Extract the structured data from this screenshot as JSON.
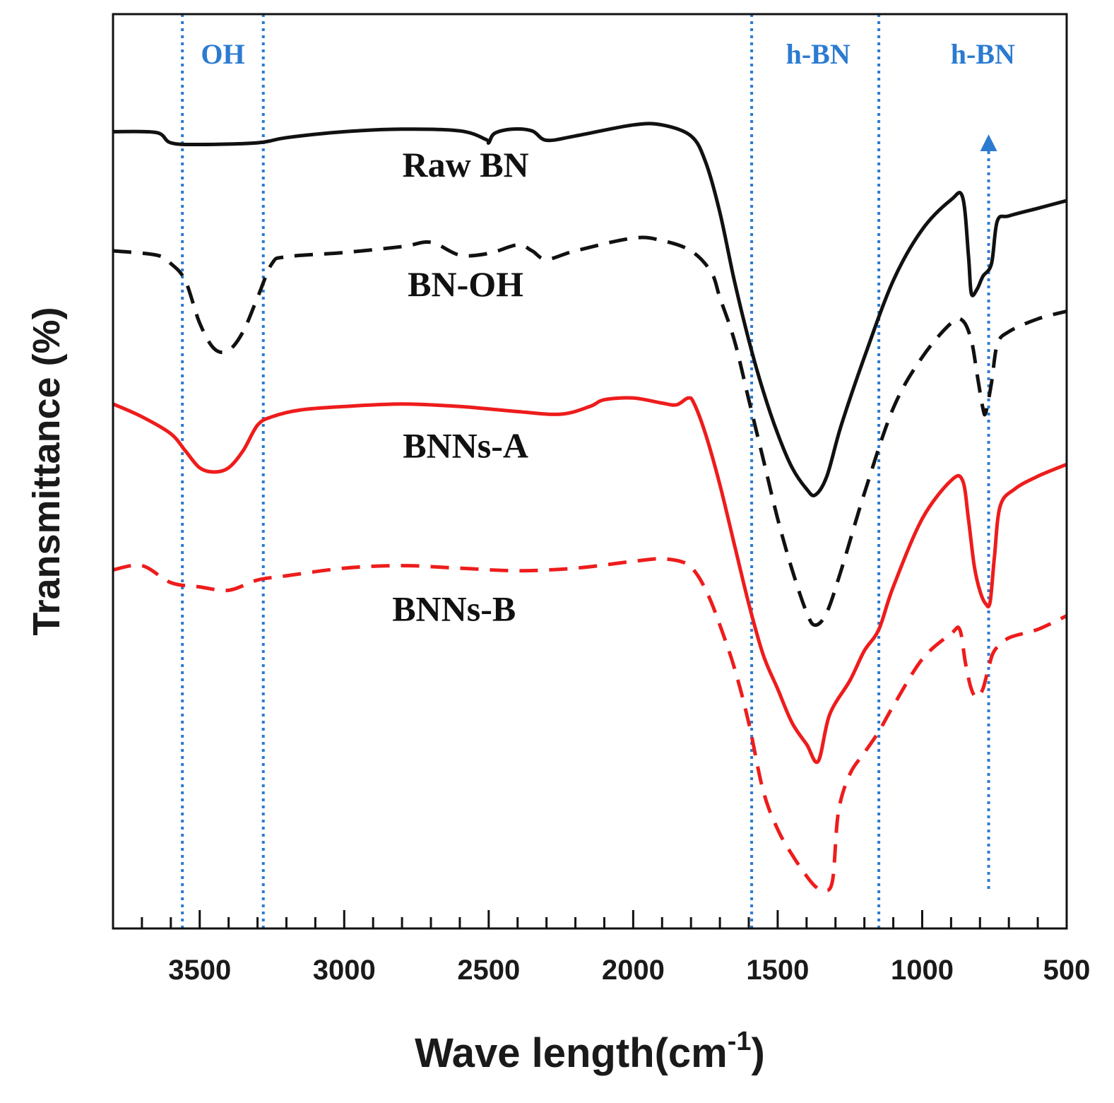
{
  "chart_data": {
    "type": "line",
    "xlabel": "Wave length(cm",
    "xlabel_sup": "-1",
    "xlabel_suffix": ")",
    "ylabel": "Transmittance (%)",
    "xlim": [
      3800,
      500
    ],
    "ylim": [
      0,
      100
    ],
    "x_ticks": [
      3500,
      3000,
      2500,
      2000,
      1500,
      1000,
      500
    ],
    "x_tick_labels": [
      "3500",
      "3000",
      "2500",
      "2000",
      "1500",
      "1000",
      "500"
    ],
    "minor_tick_step": 100,
    "colors": {
      "black": "#111111",
      "red": "#ee1c1c",
      "marker": "#2b7bd1"
    },
    "series": [
      {
        "name": "Raw BN",
        "color": "#111111",
        "dashed": false,
        "points": [
          [
            3800,
            89.5
          ],
          [
            3650,
            89.4
          ],
          [
            3600,
            88.2
          ],
          [
            3500,
            88.0
          ],
          [
            3300,
            88.2
          ],
          [
            3200,
            88.8
          ],
          [
            3000,
            89.5
          ],
          [
            2800,
            89.8
          ],
          [
            2600,
            89.6
          ],
          [
            2510,
            88.6
          ],
          [
            2500,
            88.2
          ],
          [
            2480,
            89.3
          ],
          [
            2420,
            89.8
          ],
          [
            2350,
            89.6
          ],
          [
            2300,
            88.5
          ],
          [
            2200,
            89.0
          ],
          [
            2000,
            90.3
          ],
          [
            1900,
            90.3
          ],
          [
            1800,
            89.0
          ],
          [
            1750,
            86.0
          ],
          [
            1700,
            80.0
          ],
          [
            1650,
            72.0
          ],
          [
            1600,
            65.0
          ],
          [
            1550,
            59.0
          ],
          [
            1500,
            54.0
          ],
          [
            1450,
            50.0
          ],
          [
            1400,
            47.5
          ],
          [
            1370,
            46.8
          ],
          [
            1330,
            49.0
          ],
          [
            1280,
            55.0
          ],
          [
            1200,
            63.0
          ],
          [
            1100,
            72.0
          ],
          [
            1000,
            78.0
          ],
          [
            900,
            81.5
          ],
          [
            860,
            81.8
          ],
          [
            840,
            75.0
          ],
          [
            830,
            70.5
          ],
          [
            810,
            71.0
          ],
          [
            790,
            72.5
          ],
          [
            760,
            74.0
          ],
          [
            740,
            79.0
          ],
          [
            700,
            79.6
          ],
          [
            600,
            80.5
          ],
          [
            500,
            81.4
          ]
        ]
      },
      {
        "name": "BN-OH",
        "color": "#111111",
        "dashed": true,
        "points": [
          [
            3800,
            75.5
          ],
          [
            3650,
            75.0
          ],
          [
            3600,
            74.0
          ],
          [
            3550,
            72.0
          ],
          [
            3500,
            67.0
          ],
          [
            3450,
            64.0
          ],
          [
            3400,
            63.8
          ],
          [
            3350,
            66.0
          ],
          [
            3300,
            70.0
          ],
          [
            3250,
            74.0
          ],
          [
            3200,
            74.8
          ],
          [
            3000,
            75.3
          ],
          [
            2800,
            76.0
          ],
          [
            2700,
            76.5
          ],
          [
            2600,
            75.0
          ],
          [
            2500,
            75.2
          ],
          [
            2400,
            76.2
          ],
          [
            2350,
            75.5
          ],
          [
            2300,
            74.5
          ],
          [
            2200,
            75.5
          ],
          [
            2000,
            77.0
          ],
          [
            1900,
            76.7
          ],
          [
            1800,
            75.5
          ],
          [
            1730,
            73.0
          ],
          [
            1700,
            70.0
          ],
          [
            1650,
            65.0
          ],
          [
            1600,
            58.0
          ],
          [
            1550,
            51.0
          ],
          [
            1500,
            44.0
          ],
          [
            1450,
            38.0
          ],
          [
            1400,
            33.0
          ],
          [
            1370,
            31.5
          ],
          [
            1330,
            33.0
          ],
          [
            1280,
            38.0
          ],
          [
            1200,
            47.0
          ],
          [
            1100,
            57.0
          ],
          [
            1000,
            63.0
          ],
          [
            900,
            67.0
          ],
          [
            860,
            67.3
          ],
          [
            830,
            65.0
          ],
          [
            810,
            61.0
          ],
          [
            790,
            57.0
          ],
          [
            780,
            56.5
          ],
          [
            760,
            60.0
          ],
          [
            740,
            64.5
          ],
          [
            700,
            66.0
          ],
          [
            600,
            67.5
          ],
          [
            500,
            68.4
          ]
        ]
      },
      {
        "name": "BNNs-A",
        "color": "#ee1c1c",
        "dashed": false,
        "points": [
          [
            3800,
            57.5
          ],
          [
            3700,
            56.0
          ],
          [
            3600,
            54.0
          ],
          [
            3550,
            52.0
          ],
          [
            3500,
            50.0
          ],
          [
            3450,
            49.5
          ],
          [
            3400,
            50.0
          ],
          [
            3350,
            52.0
          ],
          [
            3300,
            55.0
          ],
          [
            3250,
            56.0
          ],
          [
            3150,
            56.8
          ],
          [
            3000,
            57.2
          ],
          [
            2800,
            57.5
          ],
          [
            2600,
            57.2
          ],
          [
            2400,
            56.6
          ],
          [
            2250,
            56.3
          ],
          [
            2150,
            57.2
          ],
          [
            2100,
            58.0
          ],
          [
            2000,
            58.2
          ],
          [
            1900,
            57.6
          ],
          [
            1850,
            57.4
          ],
          [
            1810,
            58.2
          ],
          [
            1790,
            57.6
          ],
          [
            1750,
            54.0
          ],
          [
            1700,
            48.0
          ],
          [
            1650,
            41.0
          ],
          [
            1600,
            34.0
          ],
          [
            1550,
            28.0
          ],
          [
            1500,
            24.0
          ],
          [
            1450,
            20.0
          ],
          [
            1400,
            17.5
          ],
          [
            1360,
            15.5
          ],
          [
            1320,
            21.0
          ],
          [
            1250,
            25.0
          ],
          [
            1200,
            28.5
          ],
          [
            1150,
            31.0
          ],
          [
            1100,
            36.0
          ],
          [
            1000,
            44.0
          ],
          [
            900,
            48.5
          ],
          [
            860,
            48.5
          ],
          [
            840,
            44.0
          ],
          [
            820,
            38.5
          ],
          [
            800,
            35.5
          ],
          [
            780,
            34.0
          ],
          [
            765,
            34.2
          ],
          [
            750,
            39.5
          ],
          [
            730,
            45.5
          ],
          [
            680,
            47.5
          ],
          [
            600,
            49.0
          ],
          [
            500,
            50.4
          ]
        ]
      },
      {
        "name": "BNNs-B",
        "color": "#ee1c1c",
        "dashed": true,
        "points": [
          [
            3800,
            38.0
          ],
          [
            3700,
            38.5
          ],
          [
            3600,
            36.5
          ],
          [
            3500,
            36.0
          ],
          [
            3400,
            35.6
          ],
          [
            3300,
            36.8
          ],
          [
            3200,
            37.3
          ],
          [
            3000,
            38.2
          ],
          [
            2800,
            38.5
          ],
          [
            2600,
            38.2
          ],
          [
            2400,
            37.9
          ],
          [
            2200,
            38.2
          ],
          [
            2000,
            39.0
          ],
          [
            1900,
            39.3
          ],
          [
            1820,
            38.8
          ],
          [
            1780,
            37.5
          ],
          [
            1740,
            35.0
          ],
          [
            1700,
            31.5
          ],
          [
            1650,
            26.5
          ],
          [
            1600,
            20.0
          ],
          [
            1550,
            12.0
          ],
          [
            1500,
            7.5
          ],
          [
            1450,
            4.5
          ],
          [
            1400,
            2.0
          ],
          [
            1370,
            0.8
          ],
          [
            1340,
            0.3
          ],
          [
            1310,
            1.5
          ],
          [
            1290,
            9.5
          ],
          [
            1250,
            14.0
          ],
          [
            1200,
            16.5
          ],
          [
            1150,
            19.0
          ],
          [
            1100,
            22.0
          ],
          [
            1000,
            27.5
          ],
          [
            900,
            30.5
          ],
          [
            870,
            31.0
          ],
          [
            850,
            27.0
          ],
          [
            830,
            24.0
          ],
          [
            810,
            23.0
          ],
          [
            790,
            24.0
          ],
          [
            770,
            26.5
          ],
          [
            750,
            28.5
          ],
          [
            700,
            30.0
          ],
          [
            600,
            31.0
          ],
          [
            500,
            32.6
          ]
        ]
      }
    ],
    "annotations": {
      "series_labels": [
        {
          "text": "Raw BN",
          "x": 2580,
          "y": 84.2
        },
        {
          "text": "BN-OH",
          "x": 2580,
          "y": 70.2
        },
        {
          "text": "BNNs-A",
          "x": 2580,
          "y": 51.2
        },
        {
          "text": "BNNs-B",
          "x": 2620,
          "y": 32.0
        }
      ],
      "marker_lines": [
        3560,
        3280,
        1590,
        1150,
        770
      ],
      "region_labels": [
        {
          "text": "OH",
          "x": 3420
        },
        {
          "text": "h-BN",
          "x": 1360
        },
        {
          "text": "h-BN",
          "x": 790
        }
      ],
      "arrow": {
        "x": 770,
        "y_from": 0.5,
        "y_to": 88.2
      }
    }
  }
}
